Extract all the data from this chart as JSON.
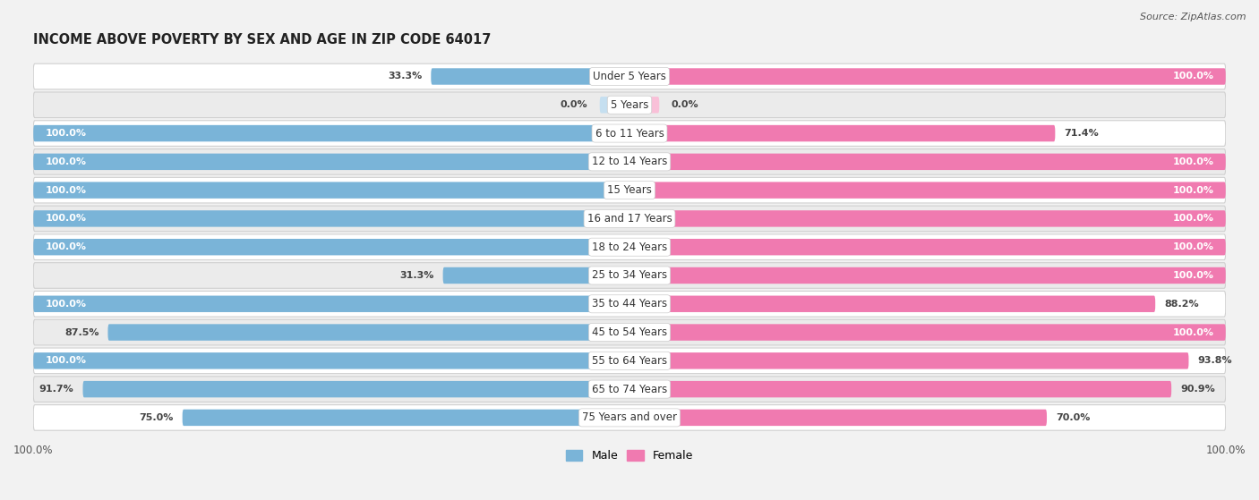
{
  "title": "INCOME ABOVE POVERTY BY SEX AND AGE IN ZIP CODE 64017",
  "source": "Source: ZipAtlas.com",
  "male_color": "#7ab4d8",
  "female_color": "#f07ab0",
  "male_color_light": "#c5dff0",
  "female_color_light": "#f9c0d8",
  "bg_color": "#f2f2f2",
  "row_color_even": "#ffffff",
  "row_color_odd": "#ebebeb",
  "categories": [
    "Under 5 Years",
    "5 Years",
    "6 to 11 Years",
    "12 to 14 Years",
    "15 Years",
    "16 and 17 Years",
    "18 to 24 Years",
    "25 to 34 Years",
    "35 to 44 Years",
    "45 to 54 Years",
    "55 to 64 Years",
    "65 to 74 Years",
    "75 Years and over"
  ],
  "male_values": [
    33.3,
    0.0,
    100.0,
    100.0,
    100.0,
    100.0,
    100.0,
    31.3,
    100.0,
    87.5,
    100.0,
    91.7,
    75.0
  ],
  "female_values": [
    100.0,
    0.0,
    71.4,
    100.0,
    100.0,
    100.0,
    100.0,
    100.0,
    88.2,
    100.0,
    93.8,
    90.9,
    70.0
  ],
  "xlim": 100.0,
  "legend_male": "Male",
  "legend_female": "Female",
  "title_fontsize": 10.5,
  "label_fontsize": 8.5,
  "value_fontsize": 8.0,
  "source_fontsize": 8.0,
  "tick_fontsize": 8.5
}
